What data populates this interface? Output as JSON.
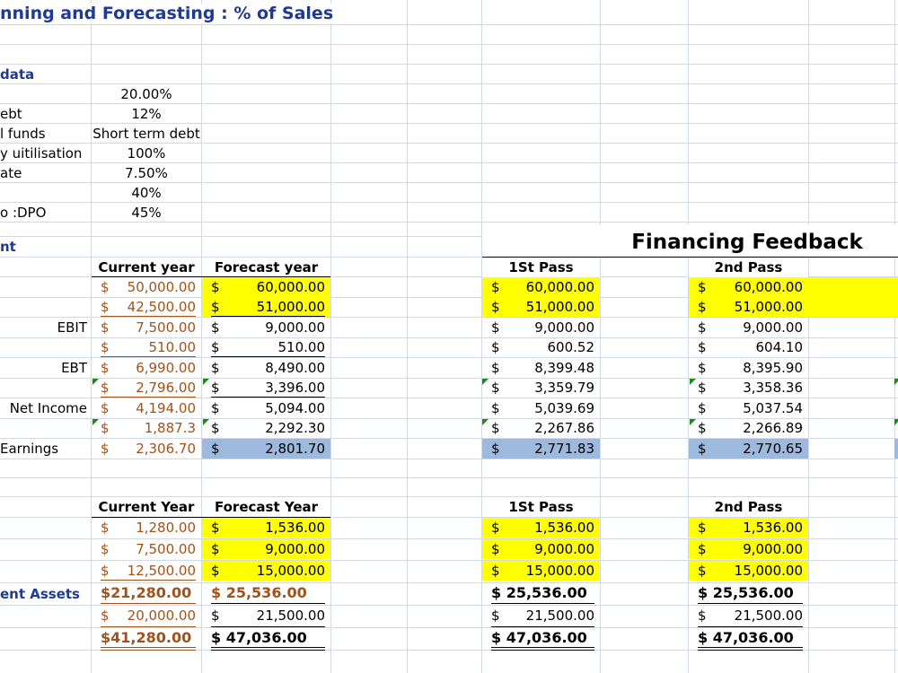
{
  "sheet_title": "nning and Forecasting : % of Sales",
  "input_section": {
    "header": "data",
    "rows": [
      {
        "label": "",
        "value": "20.00%"
      },
      {
        "label": "ebt",
        "value": "12%"
      },
      {
        "label": "l funds",
        "value": "Short term debt"
      },
      {
        "label": "y uitilisation",
        "value": "100%"
      },
      {
        "label": "ate",
        "value": "7.50%"
      },
      {
        "label": "",
        "value": "40%"
      },
      {
        "label": "o :DPO",
        "value": "45%"
      }
    ]
  },
  "income_section": {
    "header": "nt",
    "col_current": "Current year",
    "col_forecast": "Forecast year",
    "labels": [
      "",
      "",
      "EBIT",
      "",
      "EBT",
      "",
      "Net Income",
      "",
      "Earnings"
    ],
    "current": [
      "50,000.00",
      "42,500.00",
      "7,500.00",
      "510.00",
      "6,990.00",
      "2,796.00",
      "4,194.00",
      "1,887.3",
      "2,306.70"
    ],
    "forecast": [
      "60,000.00",
      "51,000.00",
      "9,000.00",
      "510.00",
      "8,490.00",
      "3,396.00",
      "5,094.00",
      "2,292.30",
      "2,801.70"
    ]
  },
  "feedback": {
    "title": "Financing Feedback",
    "pass1_header": "1St Pass",
    "pass2_header": "2nd Pass",
    "pass1_income": [
      "60,000.00",
      "51,000.00",
      "9,000.00",
      "600.52",
      "8,399.48",
      "3,359.79",
      "5,039.69",
      "2,267.86",
      "2,771.83"
    ],
    "pass2_income": [
      "60,000.00",
      "51,000.00",
      "9,000.00",
      "604.10",
      "8,395.90",
      "3,358.36",
      "5,037.54",
      "2,266.89",
      "2,770.65"
    ],
    "pass1_assets": [
      "1,536.00",
      "9,000.00",
      "15,000.00",
      "$ 25,536.00",
      "21,500.00",
      "$ 47,036.00"
    ],
    "pass2_assets": [
      "1,536.00",
      "9,000.00",
      "15,000.00",
      "$ 25,536.00",
      "21,500.00",
      "$ 47,036.00"
    ]
  },
  "balance_section": {
    "col_current": "Current Year",
    "col_forecast": "Forecast Year",
    "total_label": "ent Assets",
    "current": [
      "1,280.00",
      "7,500.00",
      "12,500.00",
      "$21,280.00",
      "20,000.00",
      "$41,280.00"
    ],
    "forecast": [
      "1,536.00",
      "9,000.00",
      "15,000.00",
      "$ 25,536.00",
      "21,500.00",
      "$ 47,036.00"
    ]
  },
  "currency_symbol": "$",
  "colors": {
    "highlight_yellow": "#ffff00",
    "highlight_blue": "#9db9de",
    "input_brown": "#a0521d",
    "title_navy": "#1f3a93",
    "grid": "#d2d8e6",
    "error_triangle": "#1c8a1c"
  }
}
